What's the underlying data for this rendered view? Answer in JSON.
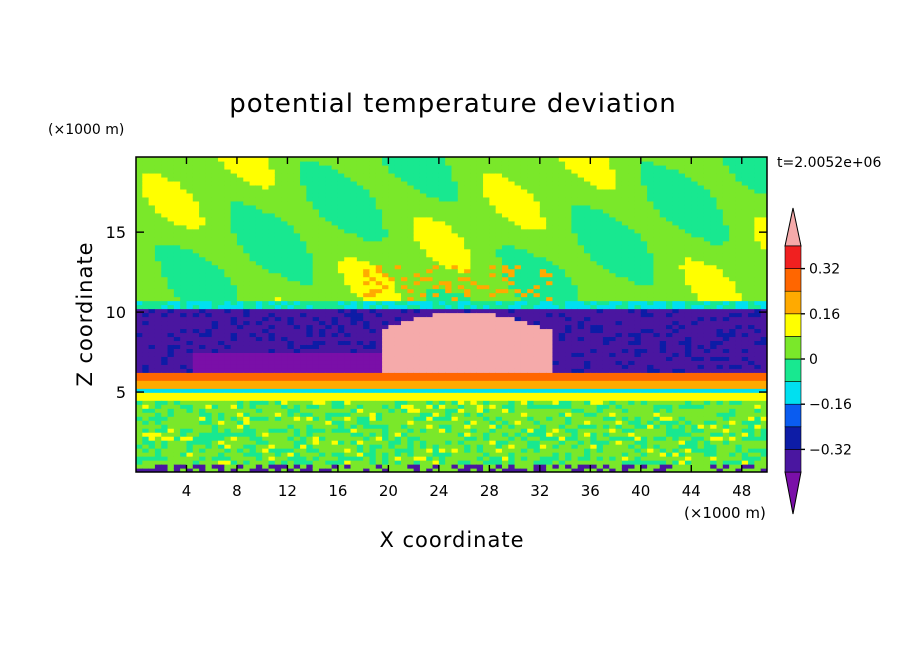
{
  "chart_data": {
    "type": "heatmap",
    "title": "potential temperature deviation",
    "xlabel": "X coordinate",
    "ylabel": "Z coordinate",
    "x_unit": "(×1000 m)",
    "y_unit": "(×1000 m)",
    "time_label": "t=2.0052e+06",
    "xlim": [
      0,
      50
    ],
    "ylim": [
      0,
      19.7
    ],
    "x_ticks": [
      "4",
      "8",
      "12",
      "16",
      "20",
      "24",
      "28",
      "32",
      "36",
      "40",
      "44",
      "48"
    ],
    "y_ticks": [
      "5",
      "10",
      "15"
    ],
    "colorbar": {
      "levels": [
        -0.48,
        -0.4,
        -0.32,
        -0.24,
        -0.16,
        -0.08,
        0,
        0.08,
        0.16,
        0.24,
        0.32,
        0.4
      ],
      "labels": [
        "0.32",
        "0.16",
        "0",
        "−0.16",
        "−0.32"
      ],
      "colors": [
        "#7a0fa8",
        "#4a16a0",
        "#0d1ca6",
        "#0a5cf0",
        "#00e0f0",
        "#18e890",
        "#7ae82a",
        "#ffff00",
        "#ffaa00",
        "#ff6600",
        "#f02020",
        "#f5aaaa"
      ]
    },
    "regions": [
      {
        "desc": "upper troposphere",
        "x_range": [
          0,
          50
        ],
        "z_range": [
          10.8,
          19.7
        ],
        "level": 0
      },
      {
        "desc": "cold band",
        "x_range": [
          0,
          50
        ],
        "z_range": [
          6.5,
          10.2
        ],
        "level": -0.4
      },
      {
        "desc": "warm core",
        "x_range": [
          19.5,
          33
        ],
        "z_range": [
          6.3,
          10.0
        ],
        "level": 0.45
      },
      {
        "desc": "warm layer",
        "x_range": [
          0,
          50
        ],
        "z_range": [
          5.3,
          6.2
        ],
        "level": 0.32
      },
      {
        "desc": "boundary layer",
        "x_range": [
          0,
          50
        ],
        "z_range": [
          0,
          4.5
        ],
        "level": 0
      }
    ]
  }
}
